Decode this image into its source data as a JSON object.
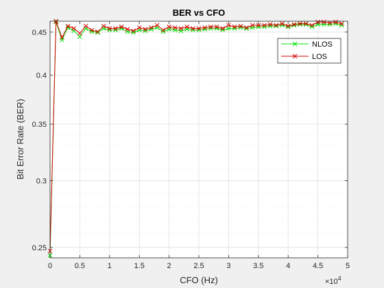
{
  "chart_data": {
    "type": "line",
    "title": "BER vs CFO",
    "xlabel": "CFO (Hz)",
    "ylabel": "Bit Error Rate (BER)",
    "x_exponent_label": "×10",
    "x_exponent_power": "4",
    "xlim": [
      0,
      50000
    ],
    "ylim": [
      0.243,
      0.4635
    ],
    "x_ticks": [
      0,
      5000,
      10000,
      15000,
      20000,
      25000,
      30000,
      35000,
      40000,
      45000,
      50000
    ],
    "x_tick_labels": [
      "0",
      "0.5",
      "1",
      "1.5",
      "2",
      "2.5",
      "3",
      "3.5",
      "4",
      "4.5",
      "5"
    ],
    "y_ticks": [
      0.25,
      0.3,
      0.35,
      0.4,
      0.45
    ],
    "y_tick_labels": [
      "0.25",
      "0.3",
      "0.35",
      "0.4",
      "0.45"
    ],
    "y_scale": "log",
    "grid": true,
    "minor_grid": true,
    "legend_position": "top-right",
    "x": [
      0,
      1000,
      2000,
      3000,
      4000,
      5000,
      6000,
      7000,
      8000,
      9000,
      10000,
      11000,
      12000,
      13000,
      14000,
      15000,
      16000,
      17000,
      18000,
      19000,
      20000,
      21000,
      22000,
      23000,
      24000,
      25000,
      26000,
      27000,
      28000,
      29000,
      30000,
      31000,
      32000,
      33000,
      34000,
      35000,
      36000,
      37000,
      38000,
      39000,
      40000,
      41000,
      42000,
      43000,
      44000,
      45000,
      46000,
      47000,
      48000,
      49000
    ],
    "series": [
      {
        "name": "NLOS",
        "color": "#00e000",
        "marker": "x",
        "values": [
          0.2445,
          0.4625,
          0.4405,
          0.4555,
          0.4515,
          0.4445,
          0.4545,
          0.4505,
          0.4495,
          0.4545,
          0.4525,
          0.4525,
          0.4545,
          0.4505,
          0.4495,
          0.4525,
          0.4515,
          0.4535,
          0.4555,
          0.4505,
          0.4535,
          0.4525,
          0.4515,
          0.4535,
          0.4525,
          0.4525,
          0.4535,
          0.4545,
          0.4545,
          0.4525,
          0.4545,
          0.4545,
          0.4555,
          0.4545,
          0.4555,
          0.4565,
          0.4565,
          0.4575,
          0.4575,
          0.4585,
          0.4565,
          0.4585,
          0.4595,
          0.4595,
          0.4565,
          0.4595,
          0.4595,
          0.4595,
          0.4605,
          0.4585
        ]
      },
      {
        "name": "LOS",
        "color": "#d40000",
        "marker": "x",
        "values": [
          0.2475,
          0.4635,
          0.4435,
          0.4575,
          0.4545,
          0.4485,
          0.4575,
          0.4525,
          0.4505,
          0.4575,
          0.4545,
          0.4545,
          0.4565,
          0.4535,
          0.4515,
          0.4555,
          0.4535,
          0.4555,
          0.4585,
          0.4525,
          0.4565,
          0.4555,
          0.4545,
          0.4565,
          0.4545,
          0.4545,
          0.4555,
          0.4565,
          0.4565,
          0.4545,
          0.4585,
          0.4565,
          0.4575,
          0.4555,
          0.4585,
          0.4585,
          0.4585,
          0.4595,
          0.4585,
          0.4605,
          0.4575,
          0.4595,
          0.4605,
          0.4605,
          0.4585,
          0.4625,
          0.4625,
          0.4615,
          0.4625,
          0.4605
        ]
      }
    ]
  }
}
